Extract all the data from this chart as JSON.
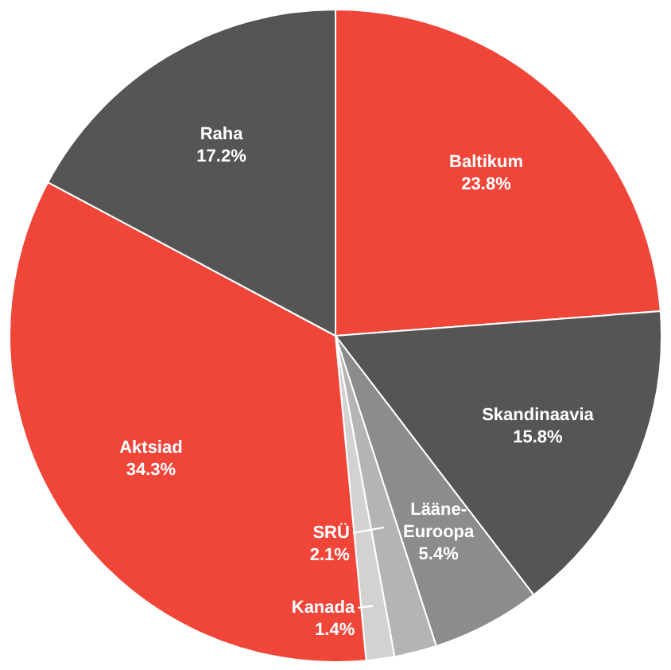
{
  "chart_data": {
    "type": "pie",
    "categories": [
      "Baltikum",
      "Skandinaavia",
      "Lääne-Euroopa",
      "SRÜ",
      "Kanada",
      "Aktsiad",
      "Raha"
    ],
    "values": [
      23.8,
      15.8,
      5.4,
      2.1,
      1.4,
      34.3,
      17.2
    ],
    "colors": [
      "#f0463a",
      "#555555",
      "#8c8c8c",
      "#b4b4b4",
      "#d2d2d2",
      "#f0463a",
      "#555555"
    ],
    "value_labels": [
      "23.8%",
      "15.8%",
      "5.4%",
      "2.1%",
      "1.4%",
      "34.3%",
      "17.2%"
    ],
    "legend": false
  }
}
